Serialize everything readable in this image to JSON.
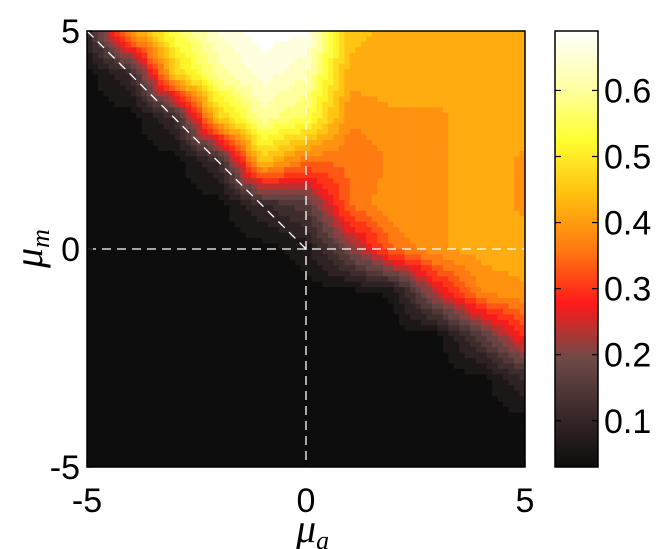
{
  "chart_data": {
    "type": "heatmap",
    "subtype": "filled-contour",
    "title": "",
    "xlabel": {
      "main": "μ",
      "sub": "a"
    },
    "ylabel": {
      "main": "μ",
      "sub": "m"
    },
    "xlim": [
      -5,
      5
    ],
    "ylim": [
      -5,
      5
    ],
    "xticks": [
      "-5",
      "0",
      "5"
    ],
    "yticks": [
      "-5",
      "0",
      "5"
    ],
    "grid": false,
    "reference_lines": [
      {
        "type": "vertical",
        "x": 0,
        "style": "dashed",
        "color": "#ffffff"
      },
      {
        "type": "horizontal",
        "y": 0,
        "style": "dashed",
        "color": "#ffffff"
      },
      {
        "type": "diagonal",
        "from": [
          -5,
          5
        ],
        "to": [
          0,
          0
        ],
        "style": "dashed",
        "color": "#ffffff"
      }
    ],
    "colorbar": {
      "position": "right",
      "range": [
        0.03,
        0.69
      ],
      "ticks": [
        "0.1",
        "0.2",
        "0.3",
        "0.4",
        "0.5",
        "0.6"
      ],
      "tick_values": [
        0.1,
        0.2,
        0.3,
        0.4,
        0.5,
        0.6
      ],
      "colormap": [
        "#0d0d0d",
        "#3a2a2a",
        "#6e4a48",
        "#ff1a1a",
        "#ff7a10",
        "#ffbf10",
        "#ffff30",
        "#ffffa8",
        "#ffffff"
      ]
    },
    "x": [
      -5,
      -4,
      -3,
      -2,
      -1,
      0,
      1,
      2,
      3,
      4,
      5
    ],
    "y": [
      -5,
      -4,
      -3,
      -2,
      -1,
      0,
      1,
      2,
      3,
      4,
      5
    ],
    "z": [
      [
        0.03,
        0.03,
        0.03,
        0.03,
        0.03,
        0.03,
        0.03,
        0.03,
        0.03,
        0.03,
        0.03
      ],
      [
        0.03,
        0.03,
        0.03,
        0.03,
        0.03,
        0.03,
        0.03,
        0.03,
        0.03,
        0.03,
        0.03
      ],
      [
        0.03,
        0.03,
        0.03,
        0.03,
        0.03,
        0.03,
        0.03,
        0.03,
        0.03,
        0.03,
        0.1
      ],
      [
        0.03,
        0.03,
        0.03,
        0.03,
        0.03,
        0.03,
        0.03,
        0.03,
        0.03,
        0.15,
        0.3
      ],
      [
        0.03,
        0.03,
        0.03,
        0.03,
        0.03,
        0.03,
        0.03,
        0.05,
        0.25,
        0.38,
        0.4
      ],
      [
        0.03,
        0.03,
        0.03,
        0.03,
        0.03,
        0.06,
        0.2,
        0.35,
        0.4,
        0.42,
        0.42
      ],
      [
        0.03,
        0.03,
        0.03,
        0.03,
        0.1,
        0.15,
        0.35,
        0.4,
        0.4,
        0.42,
        0.4
      ],
      [
        0.03,
        0.03,
        0.03,
        0.1,
        0.45,
        0.35,
        0.35,
        0.38,
        0.4,
        0.42,
        0.4
      ],
      [
        0.03,
        0.03,
        0.1,
        0.45,
        0.6,
        0.55,
        0.38,
        0.4,
        0.4,
        0.42,
        0.42
      ],
      [
        0.03,
        0.1,
        0.45,
        0.6,
        0.66,
        0.62,
        0.42,
        0.42,
        0.42,
        0.42,
        0.42
      ],
      [
        0.1,
        0.4,
        0.55,
        0.65,
        0.69,
        0.68,
        0.45,
        0.42,
        0.42,
        0.42,
        0.42
      ]
    ]
  }
}
